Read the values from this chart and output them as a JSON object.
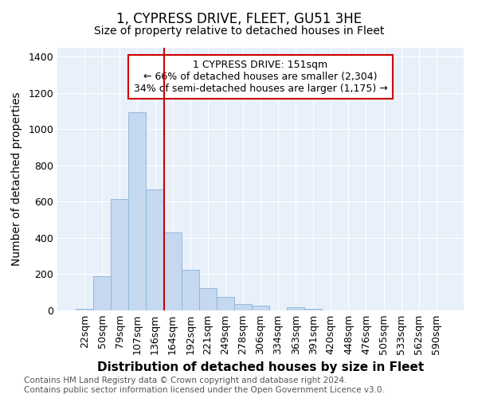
{
  "title": "1, CYPRESS DRIVE, FLEET, GU51 3HE",
  "subtitle": "Size of property relative to detached houses in Fleet",
  "xlabel": "Distribution of detached houses by size in Fleet",
  "ylabel": "Number of detached properties",
  "footer_line1": "Contains HM Land Registry data © Crown copyright and database right 2024.",
  "footer_line2": "Contains public sector information licensed under the Open Government Licence v3.0.",
  "categories": [
    "22sqm",
    "50sqm",
    "79sqm",
    "107sqm",
    "136sqm",
    "164sqm",
    "192sqm",
    "221sqm",
    "249sqm",
    "278sqm",
    "306sqm",
    "334sqm",
    "363sqm",
    "391sqm",
    "420sqm",
    "448sqm",
    "476sqm",
    "505sqm",
    "533sqm",
    "562sqm",
    "590sqm"
  ],
  "values": [
    10,
    190,
    615,
    1095,
    670,
    430,
    225,
    125,
    75,
    35,
    25,
    0,
    18,
    10,
    0,
    0,
    0,
    0,
    0,
    0,
    0
  ],
  "bar_color": "#c5d8f0",
  "bar_edge_color": "#8ab4d8",
  "vline_x": 4.5,
  "vline_color": "#cc0000",
  "annotation_text": "1 CYPRESS DRIVE: 151sqm\n← 66% of detached houses are smaller (2,304)\n34% of semi-detached houses are larger (1,175) →",
  "annotation_box_color": "#ffffff",
  "annotation_box_edge_color": "#cc0000",
  "ylim": [
    0,
    1450
  ],
  "yticks": [
    0,
    200,
    400,
    600,
    800,
    1000,
    1200,
    1400
  ],
  "fig_bg_color": "#ffffff",
  "plot_bg_color": "#e8f0fa",
  "grid_color": "#ffffff",
  "title_fontsize": 12,
  "subtitle_fontsize": 10,
  "axis_label_fontsize": 10,
  "tick_fontsize": 9,
  "footer_fontsize": 7.5,
  "annotation_fontsize": 9
}
